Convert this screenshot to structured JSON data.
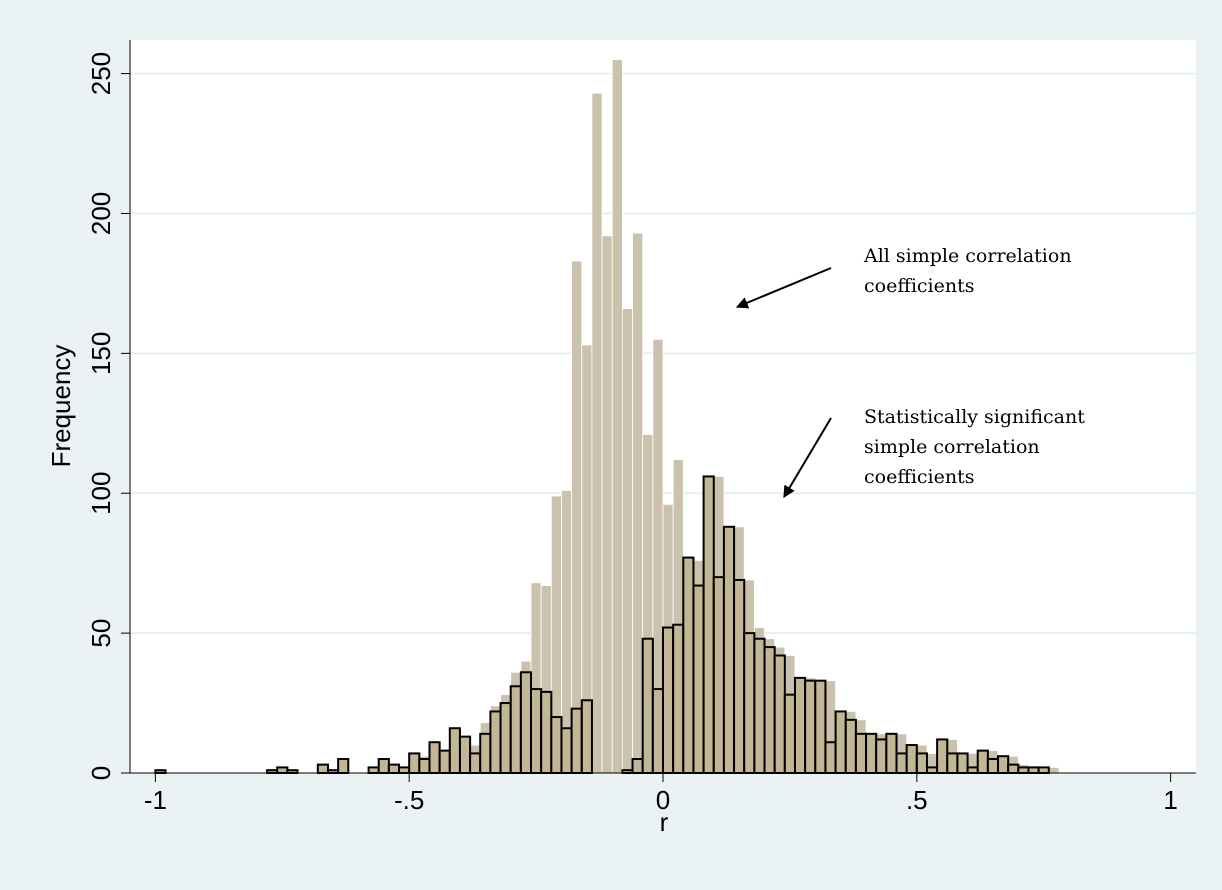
{
  "chart_data": {
    "type": "bar",
    "xlabel": "r",
    "ylabel": "Frequency",
    "xlim": [
      -1.05,
      1.05
    ],
    "ylim": [
      0,
      262
    ],
    "xticks": [
      -1,
      -0.5,
      0,
      0.5,
      1
    ],
    "xtick_labels": [
      "-1",
      "-.5",
      "0",
      ".5",
      "1"
    ],
    "yticks": [
      0,
      50,
      100,
      150,
      200,
      250
    ],
    "ytick_labels": [
      "0",
      "50",
      "100",
      "150",
      "200",
      "250"
    ],
    "grid": "horizontal",
    "bin_width": 0.02,
    "colors": {
      "all_fill": "#cbc2ad",
      "sig_fill": "#c3b695",
      "sig_stroke": "#000000",
      "background": "#eaf2f3",
      "plot_bg": "#ffffff"
    },
    "series": [
      {
        "values": [
          {
            "x": -0.99,
            "y": 1
          },
          {
            "x": -0.77,
            "y": 1
          },
          {
            "x": -0.75,
            "y": 2
          },
          {
            "x": -0.73,
            "y": 1
          },
          {
            "x": -0.67,
            "y": 3
          },
          {
            "x": -0.65,
            "y": 1
          },
          {
            "x": -0.63,
            "y": 5
          },
          {
            "x": -0.57,
            "y": 2
          },
          {
            "x": -0.55,
            "y": 5
          },
          {
            "x": -0.53,
            "y": 3
          },
          {
            "x": -0.51,
            "y": 2
          },
          {
            "x": -0.49,
            "y": 7
          },
          {
            "x": -0.47,
            "y": 6
          },
          {
            "x": -0.45,
            "y": 11
          },
          {
            "x": -0.43,
            "y": 8
          },
          {
            "x": -0.41,
            "y": 16
          },
          {
            "x": -0.39,
            "y": 13
          },
          {
            "x": -0.37,
            "y": 10
          },
          {
            "x": -0.35,
            "y": 18
          },
          {
            "x": -0.33,
            "y": 24
          },
          {
            "x": -0.31,
            "y": 28
          },
          {
            "x": -0.29,
            "y": 36
          },
          {
            "x": -0.27,
            "y": 40
          },
          {
            "x": -0.25,
            "y": 68
          },
          {
            "x": -0.23,
            "y": 67
          },
          {
            "x": -0.21,
            "y": 99
          },
          {
            "x": -0.19,
            "y": 101
          },
          {
            "x": -0.17,
            "y": 183
          },
          {
            "x": -0.15,
            "y": 153
          },
          {
            "x": -0.13,
            "y": 243
          },
          {
            "x": -0.11,
            "y": 192
          },
          {
            "x": -0.09,
            "y": 255
          },
          {
            "x": -0.07,
            "y": 166
          },
          {
            "x": -0.05,
            "y": 193
          },
          {
            "x": -0.03,
            "y": 121
          },
          {
            "x": -0.01,
            "y": 155
          },
          {
            "x": 0.01,
            "y": 96
          },
          {
            "x": 0.03,
            "y": 112
          },
          {
            "x": 0.05,
            "y": 67
          },
          {
            "x": 0.07,
            "y": 76
          },
          {
            "x": 0.09,
            "y": 67
          },
          {
            "x": 0.11,
            "y": 106
          },
          {
            "x": 0.13,
            "y": 70
          },
          {
            "x": 0.15,
            "y": 88
          },
          {
            "x": 0.17,
            "y": 69
          },
          {
            "x": 0.19,
            "y": 52
          },
          {
            "x": 0.21,
            "y": 48
          },
          {
            "x": 0.23,
            "y": 45
          },
          {
            "x": 0.25,
            "y": 42
          },
          {
            "x": 0.27,
            "y": 28
          },
          {
            "x": 0.29,
            "y": 34
          },
          {
            "x": 0.31,
            "y": 33
          },
          {
            "x": 0.33,
            "y": 33
          },
          {
            "x": 0.35,
            "y": 11
          },
          {
            "x": 0.37,
            "y": 22
          },
          {
            "x": 0.39,
            "y": 19
          },
          {
            "x": 0.41,
            "y": 14
          },
          {
            "x": 0.43,
            "y": 14
          },
          {
            "x": 0.45,
            "y": 12
          },
          {
            "x": 0.47,
            "y": 14
          },
          {
            "x": 0.49,
            "y": 7
          },
          {
            "x": 0.51,
            "y": 10
          },
          {
            "x": 0.53,
            "y": 7
          },
          {
            "x": 0.55,
            "y": 2
          },
          {
            "x": 0.57,
            "y": 12
          },
          {
            "x": 0.59,
            "y": 7
          },
          {
            "x": 0.61,
            "y": 7
          },
          {
            "x": 0.63,
            "y": 2
          },
          {
            "x": 0.65,
            "y": 8
          },
          {
            "x": 0.67,
            "y": 5
          },
          {
            "x": 0.69,
            "y": 6
          },
          {
            "x": 0.71,
            "y": 3
          },
          {
            "x": 0.73,
            "y": 2
          },
          {
            "x": 0.75,
            "y": 2
          },
          {
            "x": 0.77,
            "y": 2
          }
        ]
      },
      {
        "values": [
          {
            "x": -0.99,
            "y": 1
          },
          {
            "x": -0.77,
            "y": 1
          },
          {
            "x": -0.75,
            "y": 2
          },
          {
            "x": -0.73,
            "y": 1
          },
          {
            "x": -0.67,
            "y": 3
          },
          {
            "x": -0.65,
            "y": 1
          },
          {
            "x": -0.63,
            "y": 5
          },
          {
            "x": -0.57,
            "y": 2
          },
          {
            "x": -0.55,
            "y": 5
          },
          {
            "x": -0.53,
            "y": 3
          },
          {
            "x": -0.51,
            "y": 2
          },
          {
            "x": -0.49,
            "y": 7
          },
          {
            "x": -0.47,
            "y": 5
          },
          {
            "x": -0.45,
            "y": 11
          },
          {
            "x": -0.43,
            "y": 8
          },
          {
            "x": -0.41,
            "y": 16
          },
          {
            "x": -0.39,
            "y": 13
          },
          {
            "x": -0.37,
            "y": 7
          },
          {
            "x": -0.35,
            "y": 14
          },
          {
            "x": -0.33,
            "y": 22
          },
          {
            "x": -0.31,
            "y": 25
          },
          {
            "x": -0.29,
            "y": 31
          },
          {
            "x": -0.27,
            "y": 36
          },
          {
            "x": -0.25,
            "y": 30
          },
          {
            "x": -0.23,
            "y": 29
          },
          {
            "x": -0.21,
            "y": 20
          },
          {
            "x": -0.19,
            "y": 16
          },
          {
            "x": -0.17,
            "y": 23
          },
          {
            "x": -0.15,
            "y": 26
          },
          {
            "x": -0.13,
            "y": 0
          },
          {
            "x": -0.11,
            "y": 0
          },
          {
            "x": -0.09,
            "y": 0
          },
          {
            "x": -0.07,
            "y": 1
          },
          {
            "x": -0.05,
            "y": 5
          },
          {
            "x": -0.03,
            "y": 48
          },
          {
            "x": -0.01,
            "y": 30
          },
          {
            "x": 0.01,
            "y": 52
          },
          {
            "x": 0.03,
            "y": 53
          },
          {
            "x": 0.05,
            "y": 77
          },
          {
            "x": 0.07,
            "y": 67
          },
          {
            "x": 0.09,
            "y": 106
          },
          {
            "x": 0.11,
            "y": 70
          },
          {
            "x": 0.13,
            "y": 88
          },
          {
            "x": 0.15,
            "y": 69
          },
          {
            "x": 0.17,
            "y": 50
          },
          {
            "x": 0.19,
            "y": 48
          },
          {
            "x": 0.21,
            "y": 45
          },
          {
            "x": 0.23,
            "y": 42
          },
          {
            "x": 0.25,
            "y": 28
          },
          {
            "x": 0.27,
            "y": 34
          },
          {
            "x": 0.29,
            "y": 33
          },
          {
            "x": 0.31,
            "y": 33
          },
          {
            "x": 0.33,
            "y": 11
          },
          {
            "x": 0.35,
            "y": 22
          },
          {
            "x": 0.37,
            "y": 19
          },
          {
            "x": 0.39,
            "y": 14
          },
          {
            "x": 0.41,
            "y": 14
          },
          {
            "x": 0.43,
            "y": 12
          },
          {
            "x": 0.45,
            "y": 14
          },
          {
            "x": 0.47,
            "y": 7
          },
          {
            "x": 0.49,
            "y": 10
          },
          {
            "x": 0.51,
            "y": 7
          },
          {
            "x": 0.53,
            "y": 2
          },
          {
            "x": 0.55,
            "y": 12
          },
          {
            "x": 0.57,
            "y": 7
          },
          {
            "x": 0.59,
            "y": 7
          },
          {
            "x": 0.61,
            "y": 2
          },
          {
            "x": 0.63,
            "y": 8
          },
          {
            "x": 0.65,
            "y": 5
          },
          {
            "x": 0.67,
            "y": 6
          },
          {
            "x": 0.69,
            "y": 3
          },
          {
            "x": 0.71,
            "y": 2
          },
          {
            "x": 0.73,
            "y": 2
          },
          {
            "x": 0.75,
            "y": 2
          }
        ]
      }
    ],
    "annotations": [
      {
        "lines": [
          "All simple correlation",
          "coefficients"
        ],
        "target_series": 0
      },
      {
        "lines": [
          "Statistically significant",
          "simple correlation",
          "coefficients"
        ],
        "target_series": 1
      }
    ]
  }
}
